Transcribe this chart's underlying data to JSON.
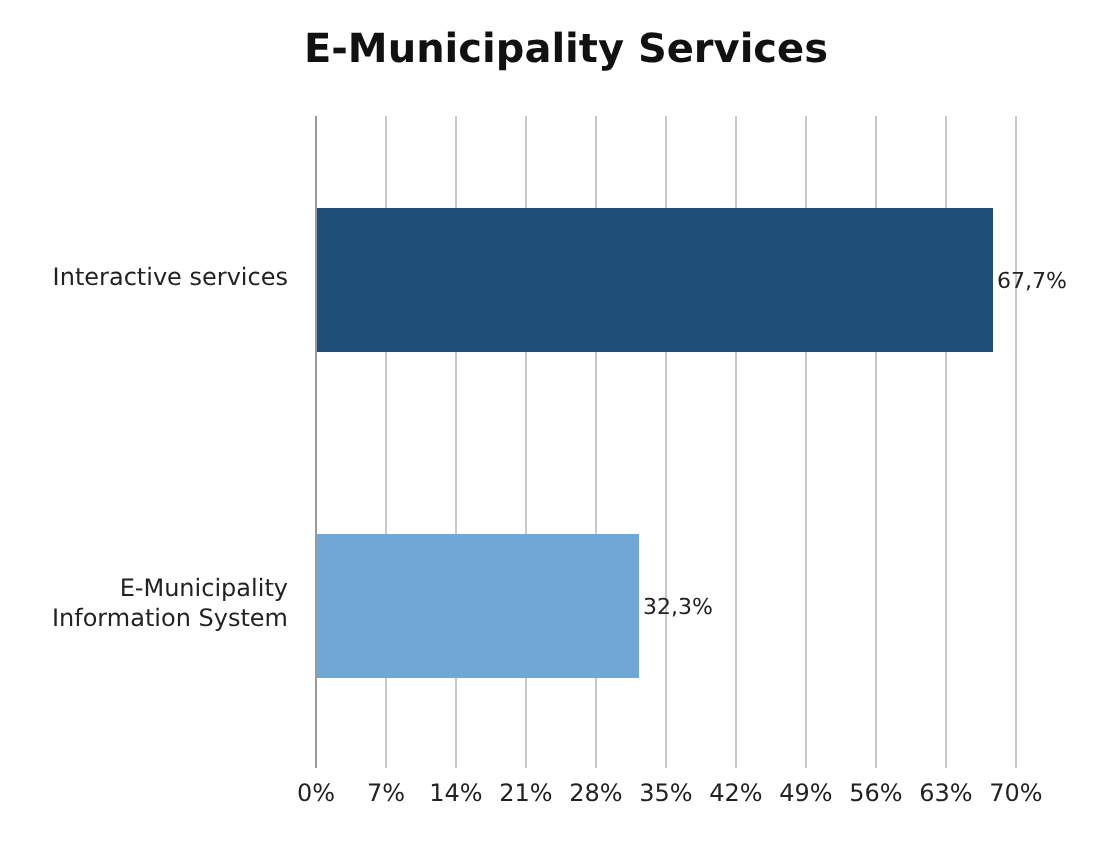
{
  "chart_data": {
    "type": "bar",
    "title": "E-Municipality Services",
    "orientation": "horizontal",
    "categories": [
      "Interactive services",
      "E-Municipality Information System"
    ],
    "values": [
      67.7,
      32.3
    ],
    "colors": [
      "#1f4e79",
      "#6fa7d6"
    ],
    "value_labels": [
      "67,7%",
      "32,3%"
    ],
    "xlim": [
      0,
      70
    ],
    "xticks": [
      {
        "value": 0,
        "label": "0%"
      },
      {
        "value": 7,
        "label": "7%"
      },
      {
        "value": 14,
        "label": "14%"
      },
      {
        "value": 21,
        "label": "21%"
      },
      {
        "value": 28,
        "label": "28%"
      },
      {
        "value": 35,
        "label": "35%"
      },
      {
        "value": 42,
        "label": "42%"
      },
      {
        "value": 49,
        "label": "49%"
      },
      {
        "value": 56,
        "label": "56%"
      },
      {
        "value": 63,
        "label": "63%"
      },
      {
        "value": 70,
        "label": "70%"
      }
    ],
    "grid": "x"
  }
}
